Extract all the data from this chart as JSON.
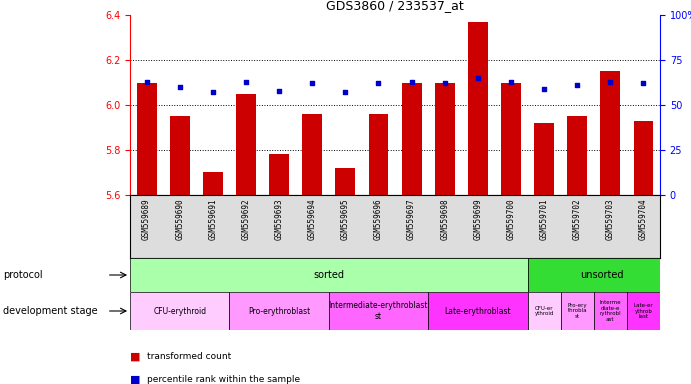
{
  "title": "GDS3860 / 233537_at",
  "samples": [
    "GSM559689",
    "GSM559690",
    "GSM559691",
    "GSM559692",
    "GSM559693",
    "GSM559694",
    "GSM559695",
    "GSM559696",
    "GSM559697",
    "GSM559698",
    "GSM559699",
    "GSM559700",
    "GSM559701",
    "GSM559702",
    "GSM559703",
    "GSM559704"
  ],
  "transformed_count": [
    6.1,
    5.95,
    5.7,
    6.05,
    5.78,
    5.96,
    5.72,
    5.96,
    6.1,
    6.1,
    6.37,
    6.1,
    5.92,
    5.95,
    6.15,
    5.93
  ],
  "percentile_rank": [
    63,
    60,
    57,
    63,
    58,
    62,
    57,
    62,
    63,
    62,
    65,
    63,
    59,
    61,
    63,
    62
  ],
  "bar_bottom": 5.6,
  "ylim_left": [
    5.6,
    6.4
  ],
  "ylim_right": [
    0,
    100
  ],
  "yticks_left": [
    5.6,
    5.8,
    6.0,
    6.2,
    6.4
  ],
  "yticks_right": [
    0,
    25,
    50,
    75,
    100
  ],
  "bar_color": "#cc0000",
  "dot_color": "#0000cc",
  "protocol_sorted_color": "#aaffaa",
  "protocol_unsorted_color": "#33dd33",
  "sorted_count": 12,
  "unsorted_count": 4,
  "dev_stages_sorted": [
    {
      "label": "CFU-erythroid",
      "start": 0,
      "end": 3,
      "color": "#ffccff"
    },
    {
      "label": "Pro-erythroblast",
      "start": 3,
      "end": 6,
      "color": "#ff99ff"
    },
    {
      "label": "Intermediate-erythroblast\nst",
      "start": 6,
      "end": 9,
      "color": "#ff66ff"
    },
    {
      "label": "Late-erythroblast",
      "start": 9,
      "end": 12,
      "color": "#ff33ff"
    }
  ],
  "dev_stages_unsorted": [
    {
      "label": "CFU-er\nythroid",
      "start": 12,
      "end": 13,
      "color": "#ffccff"
    },
    {
      "label": "Pro-ery\nthrobla\nst",
      "start": 13,
      "end": 14,
      "color": "#ff99ff"
    },
    {
      "label": "Interme\ndiate-e\nrythrobl\nast",
      "start": 14,
      "end": 15,
      "color": "#ff66ff"
    },
    {
      "label": "Late-er\nythrob\nlast",
      "start": 15,
      "end": 16,
      "color": "#ff33ff"
    }
  ],
  "legend_items": [
    {
      "label": "transformed count",
      "color": "#cc0000"
    },
    {
      "label": "percentile rank within the sample",
      "color": "#0000cc"
    }
  ]
}
